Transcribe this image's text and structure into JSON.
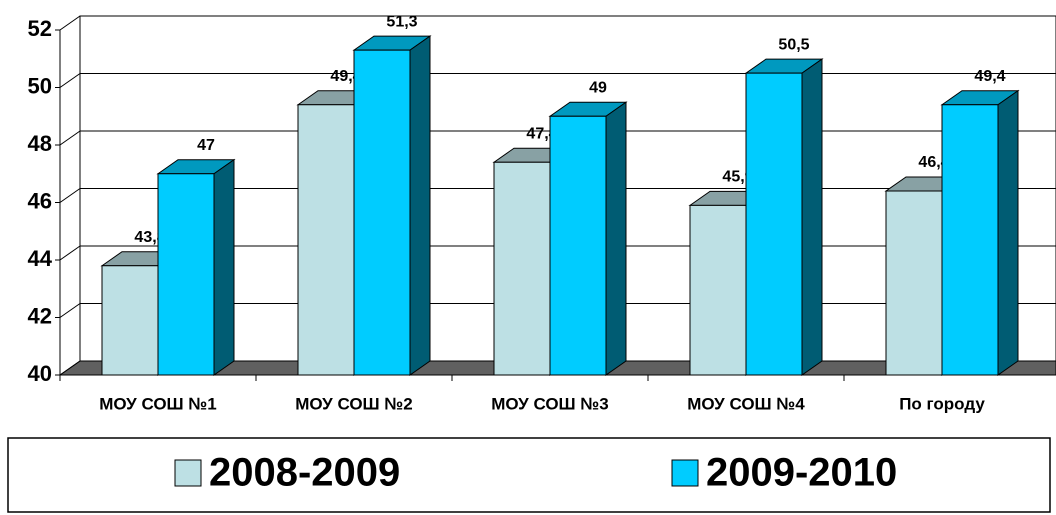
{
  "chart_data": {
    "type": "bar3d",
    "categories": [
      "МОУ СОШ №1",
      "МОУ СОШ №2",
      "МОУ СОШ №3",
      "МОУ СОШ №4",
      "По городу"
    ],
    "series": [
      {
        "name": "2008-2009",
        "color": "#bde0e4",
        "values": [
          43.8,
          49.4,
          47.4,
          45.9,
          46.4
        ],
        "value_labels": [
          "43,8",
          "49,4",
          "47,4",
          "45,9",
          "46,4"
        ]
      },
      {
        "name": "2009-2010",
        "color": "#00ccff",
        "values": [
          47,
          51.3,
          49,
          50.5,
          49.4
        ],
        "value_labels": [
          "47",
          "51,3",
          "49",
          "50,5",
          "49,4"
        ]
      }
    ],
    "ylim": [
      40,
      52
    ],
    "yticks": [
      40,
      42,
      44,
      46,
      48,
      50,
      52
    ],
    "grid": true,
    "legend": "bottom"
  }
}
